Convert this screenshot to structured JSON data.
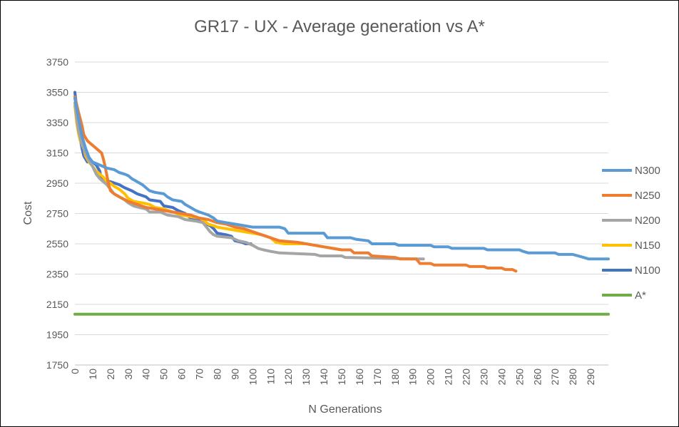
{
  "chart_data": {
    "type": "line",
    "title": "GR17 - UX - Average generation vs A*",
    "xlabel": "N Generations",
    "ylabel": "Cost",
    "xlim": [
      0,
      300
    ],
    "ylim": [
      1750,
      3750
    ],
    "yticks": [
      1750,
      1950,
      2150,
      2350,
      2550,
      2750,
      2950,
      3150,
      3350,
      3550,
      3750
    ],
    "xticks": [
      0,
      10,
      20,
      30,
      40,
      50,
      60,
      70,
      80,
      90,
      100,
      110,
      120,
      130,
      140,
      150,
      160,
      170,
      180,
      190,
      200,
      210,
      220,
      230,
      240,
      250,
      260,
      270,
      280,
      290
    ],
    "grid": "horizontal",
    "legend": "right",
    "series": [
      {
        "name": "N300",
        "color": "#5B9BD5",
        "points": [
          [
            0,
            3510
          ],
          [
            2,
            3380
          ],
          [
            4,
            3260
          ],
          [
            6,
            3180
          ],
          [
            8,
            3120
          ],
          [
            10,
            3090
          ],
          [
            12,
            3080
          ],
          [
            14,
            3070
          ],
          [
            16,
            3060
          ],
          [
            18,
            3050
          ],
          [
            22,
            3040
          ],
          [
            25,
            3020
          ],
          [
            28,
            3010
          ],
          [
            30,
            3000
          ],
          [
            32,
            2980
          ],
          [
            35,
            2960
          ],
          [
            38,
            2940
          ],
          [
            40,
            2920
          ],
          [
            42,
            2900
          ],
          [
            45,
            2890
          ],
          [
            50,
            2880
          ],
          [
            52,
            2860
          ],
          [
            55,
            2840
          ],
          [
            60,
            2830
          ],
          [
            62,
            2810
          ],
          [
            65,
            2790
          ],
          [
            68,
            2770
          ],
          [
            70,
            2760
          ],
          [
            75,
            2740
          ],
          [
            78,
            2720
          ],
          [
            80,
            2700
          ],
          [
            85,
            2690
          ],
          [
            90,
            2680
          ],
          [
            95,
            2670
          ],
          [
            100,
            2660
          ],
          [
            115,
            2660
          ],
          [
            118,
            2650
          ],
          [
            120,
            2620
          ],
          [
            140,
            2620
          ],
          [
            142,
            2590
          ],
          [
            155,
            2590
          ],
          [
            158,
            2580
          ],
          [
            165,
            2570
          ],
          [
            167,
            2550
          ],
          [
            180,
            2550
          ],
          [
            182,
            2540
          ],
          [
            200,
            2540
          ],
          [
            202,
            2530
          ],
          [
            210,
            2530
          ],
          [
            212,
            2520
          ],
          [
            230,
            2520
          ],
          [
            232,
            2510
          ],
          [
            250,
            2510
          ],
          [
            252,
            2500
          ],
          [
            255,
            2490
          ],
          [
            270,
            2490
          ],
          [
            272,
            2480
          ],
          [
            280,
            2480
          ],
          [
            283,
            2470
          ],
          [
            286,
            2460
          ],
          [
            289,
            2450
          ],
          [
            300,
            2450
          ]
        ]
      },
      {
        "name": "N250",
        "color": "#ED7D31",
        "points": [
          [
            0,
            3520
          ],
          [
            2,
            3420
          ],
          [
            4,
            3330
          ],
          [
            5,
            3270
          ],
          [
            7,
            3230
          ],
          [
            9,
            3210
          ],
          [
            11,
            3190
          ],
          [
            13,
            3170
          ],
          [
            15,
            3150
          ],
          [
            16,
            3110
          ],
          [
            17,
            3060
          ],
          [
            18,
            3000
          ],
          [
            19,
            2940
          ],
          [
            20,
            2900
          ],
          [
            22,
            2880
          ],
          [
            25,
            2860
          ],
          [
            30,
            2830
          ],
          [
            35,
            2810
          ],
          [
            40,
            2790
          ],
          [
            45,
            2780
          ],
          [
            50,
            2770
          ],
          [
            55,
            2760
          ],
          [
            60,
            2750
          ],
          [
            65,
            2740
          ],
          [
            70,
            2720
          ],
          [
            75,
            2710
          ],
          [
            80,
            2690
          ],
          [
            85,
            2680
          ],
          [
            90,
            2660
          ],
          [
            95,
            2650
          ],
          [
            100,
            2630
          ],
          [
            105,
            2610
          ],
          [
            110,
            2590
          ],
          [
            115,
            2570
          ],
          [
            125,
            2560
          ],
          [
            130,
            2550
          ],
          [
            140,
            2530
          ],
          [
            150,
            2510
          ],
          [
            155,
            2510
          ],
          [
            157,
            2490
          ],
          [
            165,
            2490
          ],
          [
            167,
            2470
          ],
          [
            180,
            2460
          ],
          [
            183,
            2450
          ],
          [
            192,
            2450
          ],
          [
            194,
            2420
          ],
          [
            200,
            2420
          ],
          [
            202,
            2410
          ],
          [
            220,
            2410
          ],
          [
            222,
            2400
          ],
          [
            230,
            2400
          ],
          [
            232,
            2390
          ],
          [
            240,
            2390
          ],
          [
            242,
            2380
          ],
          [
            246,
            2380
          ],
          [
            248,
            2370
          ]
        ]
      },
      {
        "name": "N200",
        "color": "#A5A5A5",
        "points": [
          [
            0,
            3480
          ],
          [
            1,
            3380
          ],
          [
            2,
            3300
          ],
          [
            3,
            3250
          ],
          [
            4,
            3200
          ],
          [
            6,
            3150
          ],
          [
            8,
            3100
          ],
          [
            10,
            3060
          ],
          [
            12,
            3010
          ],
          [
            14,
            2980
          ],
          [
            16,
            2960
          ],
          [
            18,
            2940
          ],
          [
            20,
            2910
          ],
          [
            22,
            2880
          ],
          [
            25,
            2860
          ],
          [
            28,
            2840
          ],
          [
            30,
            2820
          ],
          [
            33,
            2800
          ],
          [
            36,
            2790
          ],
          [
            40,
            2780
          ],
          [
            42,
            2760
          ],
          [
            48,
            2760
          ],
          [
            52,
            2740
          ],
          [
            58,
            2730
          ],
          [
            62,
            2710
          ],
          [
            68,
            2700
          ],
          [
            72,
            2690
          ],
          [
            74,
            2660
          ],
          [
            76,
            2630
          ],
          [
            78,
            2610
          ],
          [
            80,
            2600
          ],
          [
            88,
            2590
          ],
          [
            92,
            2570
          ],
          [
            96,
            2560
          ],
          [
            100,
            2540
          ],
          [
            103,
            2520
          ],
          [
            106,
            2510
          ],
          [
            110,
            2500
          ],
          [
            115,
            2490
          ],
          [
            135,
            2480
          ],
          [
            138,
            2470
          ],
          [
            150,
            2470
          ],
          [
            152,
            2460
          ],
          [
            190,
            2450
          ],
          [
            196,
            2450
          ]
        ]
      },
      {
        "name": "N150",
        "color": "#FFC000",
        "points": [
          [
            0,
            3460
          ],
          [
            1,
            3350
          ],
          [
            2,
            3280
          ],
          [
            3,
            3230
          ],
          [
            5,
            3180
          ],
          [
            6,
            3130
          ],
          [
            8,
            3090
          ],
          [
            10,
            3060
          ],
          [
            12,
            3030
          ],
          [
            14,
            3010
          ],
          [
            16,
            2990
          ],
          [
            18,
            2960
          ],
          [
            20,
            2950
          ],
          [
            22,
            2930
          ],
          [
            25,
            2910
          ],
          [
            28,
            2880
          ],
          [
            30,
            2850
          ],
          [
            33,
            2830
          ],
          [
            38,
            2820
          ],
          [
            42,
            2810
          ],
          [
            45,
            2790
          ],
          [
            50,
            2780
          ],
          [
            55,
            2760
          ],
          [
            60,
            2740
          ],
          [
            65,
            2730
          ],
          [
            70,
            2720
          ],
          [
            73,
            2700
          ],
          [
            75,
            2680
          ],
          [
            78,
            2670
          ],
          [
            80,
            2660
          ],
          [
            90,
            2640
          ],
          [
            95,
            2630
          ],
          [
            100,
            2620
          ],
          [
            105,
            2610
          ],
          [
            110,
            2590
          ],
          [
            113,
            2560
          ],
          [
            118,
            2550
          ],
          [
            130,
            2550
          ],
          [
            135,
            2540
          ],
          [
            140,
            2530
          ],
          [
            145,
            2520
          ],
          [
            150,
            2510
          ]
        ]
      },
      {
        "name": "N100",
        "color": "#4472C4",
        "points": [
          [
            0,
            3550
          ],
          [
            1,
            3450
          ],
          [
            2,
            3330
          ],
          [
            3,
            3240
          ],
          [
            4,
            3180
          ],
          [
            5,
            3130
          ],
          [
            6,
            3110
          ],
          [
            7,
            3090
          ],
          [
            10,
            3090
          ],
          [
            12,
            3070
          ],
          [
            14,
            3030
          ],
          [
            15,
            2970
          ],
          [
            20,
            2960
          ],
          [
            25,
            2940
          ],
          [
            28,
            2920
          ],
          [
            32,
            2900
          ],
          [
            35,
            2880
          ],
          [
            40,
            2860
          ],
          [
            42,
            2840
          ],
          [
            48,
            2830
          ],
          [
            50,
            2800
          ],
          [
            55,
            2790
          ],
          [
            58,
            2770
          ],
          [
            62,
            2750
          ],
          [
            65,
            2720
          ],
          [
            70,
            2710
          ],
          [
            72,
            2690
          ],
          [
            76,
            2670
          ],
          [
            78,
            2650
          ],
          [
            80,
            2620
          ],
          [
            85,
            2610
          ],
          [
            88,
            2600
          ],
          [
            90,
            2570
          ],
          [
            94,
            2560
          ],
          [
            96,
            2550
          ],
          [
            99,
            2550
          ]
        ]
      },
      {
        "name": "A*",
        "color": "#70AD47",
        "points": [
          [
            0,
            2085
          ],
          [
            300,
            2085
          ]
        ]
      }
    ]
  }
}
